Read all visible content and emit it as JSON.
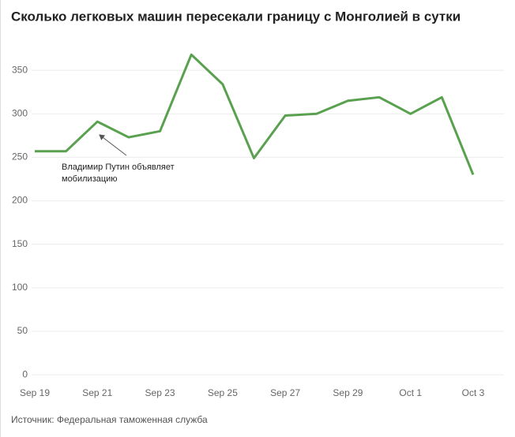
{
  "chart_data": {
    "type": "line",
    "title": "Сколько легковых машин пересекали границу с Монголией в сутки",
    "source": "Источник: Федеральная таможенная служба",
    "annotation": [
      "Владимир Путин объявляет",
      "мобилизацию"
    ],
    "categories": [
      "Sep 19",
      null,
      "Sep 21",
      null,
      "Sep 23",
      null,
      "Sep 25",
      null,
      "Sep 27",
      null,
      "Sep 29",
      null,
      "Oct 1",
      null,
      "Oct 3"
    ],
    "series": [
      {
        "name": "Легковые машины",
        "color": "#59a14f",
        "values": [
          257,
          257,
          291,
          273,
          280,
          368,
          334,
          249,
          298,
          300,
          315,
          319,
          300,
          319,
          230
        ]
      }
    ],
    "ylim": [
      -8,
      390
    ],
    "yticks": [
      0,
      50,
      100,
      150,
      200,
      250,
      300,
      350
    ],
    "grid": true
  }
}
